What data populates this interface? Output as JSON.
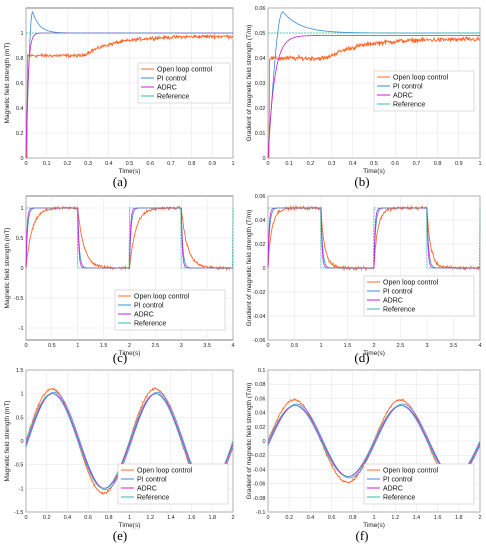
{
  "figure": {
    "panel_labels": [
      "(a)",
      "(b)",
      "(c)",
      "(d)",
      "(e)",
      "(f)"
    ]
  },
  "chart_data": [
    {
      "id": "a",
      "type": "line",
      "xlabel": "Time(s)",
      "ylabel": "Magnetic field strength (mT)",
      "xlim": [
        0,
        1
      ],
      "ylim": [
        0,
        1.2
      ],
      "x_ticks": [
        "0",
        "0.1",
        "0.2",
        "0.3",
        "0.4",
        "0.5",
        "0.6",
        "0.7",
        "0.8",
        "0.9",
        "1"
      ],
      "y_ticks": [
        "0",
        "0.2",
        "0.4",
        "0.6",
        "0.8",
        "1"
      ],
      "y_tick_values": [
        0,
        0.2,
        0.4,
        0.6,
        0.8,
        1.0
      ],
      "grid": true,
      "legend_position": "center-right",
      "signal": "step",
      "level": 1.0,
      "series": [
        {
          "name": "Open loop control",
          "color": "#ff6a2b",
          "kind": "first-order-noisy",
          "final": 0.975,
          "tau": 0.15,
          "noise": 0.012
        },
        {
          "name": "PI control",
          "color": "#3c8bdc",
          "kind": "overshoot",
          "final": 1.0,
          "peak": 1.17,
          "peak_t": 0.032,
          "settle": 0.06
        },
        {
          "name": "ADRC",
          "color": "#c81fd6",
          "kind": "fast",
          "final": 1.0,
          "tau": 0.01
        },
        {
          "name": "Reference",
          "color": "#34b7a8",
          "kind": "reference",
          "final": 1.0
        }
      ]
    },
    {
      "id": "b",
      "type": "line",
      "xlabel": "Time(s)",
      "ylabel": "Gradient of magnetic field strength (T/m)",
      "xlim": [
        0,
        1
      ],
      "ylim": [
        0,
        0.06
      ],
      "x_ticks": [
        "0",
        "0.1",
        "0.2",
        "0.3",
        "0.4",
        "0.5",
        "0.6",
        "0.7",
        "0.8",
        "0.9",
        "1"
      ],
      "y_ticks": [
        "0",
        "0.01",
        "0.02",
        "0.03",
        "0.04",
        "0.05",
        "0.06"
      ],
      "y_tick_values": [
        0,
        0.01,
        0.02,
        0.03,
        0.04,
        0.05,
        0.06
      ],
      "grid": true,
      "legend_position": "center-right",
      "signal": "step",
      "level": 0.05,
      "series": [
        {
          "name": "Open loop control",
          "color": "#ff6a2b",
          "kind": "first-order-noisy",
          "final": 0.0475,
          "tau": 0.15,
          "noise": 0.0008
        },
        {
          "name": "PI control",
          "color": "#3c8bdc",
          "kind": "overshoot",
          "final": 0.05,
          "peak": 0.0585,
          "peak_t": 0.07,
          "settle": 0.15
        },
        {
          "name": "ADRC",
          "color": "#c81fd6",
          "kind": "fast",
          "final": 0.049,
          "tau": 0.03
        },
        {
          "name": "Reference",
          "color": "#34b7a8",
          "kind": "reference",
          "final": 0.05
        }
      ]
    },
    {
      "id": "c",
      "type": "line",
      "xlabel": "Time(s)",
      "ylabel": "Magnetic field strength (mT)",
      "xlim": [
        0,
        4
      ],
      "ylim": [
        -1.2,
        1.2
      ],
      "x_ticks": [
        "0",
        "0.5",
        "1",
        "1.5",
        "2",
        "2.5",
        "3",
        "3.5",
        "4"
      ],
      "y_ticks": [
        "-1",
        "-0.5",
        "0",
        "0.5",
        "1"
      ],
      "y_tick_values": [
        -1,
        -0.5,
        0,
        0.5,
        1
      ],
      "grid": true,
      "legend_position": "bottom-right",
      "signal": "square",
      "high": 1.0,
      "low": 0,
      "period": 2,
      "series": [
        {
          "name": "Open loop control",
          "color": "#ff6a2b",
          "kind": "first-order-noisy",
          "tau": 0.12,
          "noise": 0.02
        },
        {
          "name": "PI control",
          "color": "#3c8bdc",
          "kind": "pi-square",
          "tau": 0.03
        },
        {
          "name": "ADRC",
          "color": "#c81fd6",
          "kind": "fast",
          "tau": 0.02
        },
        {
          "name": "Reference",
          "color": "#34b7a8",
          "kind": "reference"
        }
      ]
    },
    {
      "id": "d",
      "type": "line",
      "xlabel": "Time(s)",
      "ylabel": "Gradient of magnetic field strength (T/m)",
      "xlim": [
        0,
        4
      ],
      "ylim": [
        -0.06,
        0.06
      ],
      "x_ticks": [
        "0",
        "0.5",
        "1",
        "1.5",
        "2",
        "2.5",
        "3",
        "3.5",
        "4"
      ],
      "y_ticks": [
        "-0.06",
        "-0.04",
        "-0.02",
        "0",
        "0.02",
        "0.04",
        "0.06"
      ],
      "y_tick_values": [
        -0.06,
        -0.04,
        -0.02,
        0,
        0.02,
        0.04,
        0.06
      ],
      "grid": true,
      "legend_position": "bottom-right",
      "signal": "square",
      "high": 0.05,
      "low": 0,
      "period": 2,
      "series": [
        {
          "name": "Open loop control",
          "color": "#ff6a2b",
          "kind": "first-order-noisy",
          "tau": 0.08,
          "noise": 0.0012,
          "overshoot": 0.005
        },
        {
          "name": "PI control",
          "color": "#3c8bdc",
          "kind": "pi-square",
          "tau": 0.03
        },
        {
          "name": "ADRC",
          "color": "#c81fd6",
          "kind": "fast",
          "tau": 0.02
        },
        {
          "name": "Reference",
          "color": "#34b7a8",
          "kind": "reference"
        }
      ]
    },
    {
      "id": "e",
      "type": "line",
      "xlabel": "Time(s)",
      "ylabel": "Magnetic field strength (mT)",
      "xlim": [
        0,
        2
      ],
      "ylim": [
        -1.5,
        1.5
      ],
      "x_ticks": [
        "0",
        "0.2",
        "0.4",
        "0.6",
        "0.8",
        "1",
        "1.2",
        "1.4",
        "1.6",
        "1.8",
        "2"
      ],
      "y_ticks": [
        "-1.5",
        "-1",
        "-0.5",
        "0",
        "0.5",
        "1",
        "1.5"
      ],
      "y_tick_values": [
        -1.5,
        -1,
        -0.5,
        0,
        0.5,
        1,
        1.5
      ],
      "grid": true,
      "legend_position": "bottom-right",
      "signal": "sine",
      "frequency": 1,
      "series": [
        {
          "name": "Open loop control",
          "color": "#ff6a2b",
          "amplitude": 1.1,
          "phase": 0.0,
          "noise": 0.02
        },
        {
          "name": "PI control",
          "color": "#3c8bdc",
          "amplitude": 1.03,
          "phase": 0.02,
          "noise": 0.0
        },
        {
          "name": "ADRC",
          "color": "#c81fd6",
          "amplitude": 1.0,
          "phase": 0.01,
          "noise": 0.0
        },
        {
          "name": "Reference",
          "color": "#34b7a8",
          "amplitude": 1.0,
          "phase": 0.0,
          "noise": 0.0
        }
      ]
    },
    {
      "id": "f",
      "type": "line",
      "xlabel": "Time(s)",
      "ylabel": "Gradient of magnetic field strength (T/m)",
      "xlim": [
        0,
        2
      ],
      "ylim": [
        -0.1,
        0.1
      ],
      "x_ticks": [
        "0",
        "0.2",
        "0.4",
        "0.6",
        "0.8",
        "1",
        "1.2",
        "1.4",
        "1.6",
        "1.8",
        "2"
      ],
      "y_ticks": [
        "-0.1",
        "-0.08",
        "-0.06",
        "-0.04",
        "-0.02",
        "0",
        "0.02",
        "0.04",
        "0.06",
        "0.08",
        "0.1"
      ],
      "y_tick_values": [
        -0.1,
        -0.08,
        -0.06,
        -0.04,
        -0.02,
        0,
        0.02,
        0.04,
        0.06,
        0.08,
        0.1
      ],
      "grid": true,
      "legend_position": "bottom-right",
      "signal": "sine",
      "frequency": 1,
      "series": [
        {
          "name": "Open loop control",
          "color": "#ff6a2b",
          "amplitude": 0.058,
          "phase": 0.0,
          "noise": 0.0012
        },
        {
          "name": "PI control",
          "color": "#3c8bdc",
          "amplitude": 0.052,
          "phase": 0.02,
          "noise": 0.0
        },
        {
          "name": "ADRC",
          "color": "#c81fd6",
          "amplitude": 0.05,
          "phase": 0.01,
          "noise": 0.0
        },
        {
          "name": "Reference",
          "color": "#34b7a8",
          "amplitude": 0.05,
          "phase": 0.0,
          "noise": 0.0
        }
      ]
    }
  ]
}
